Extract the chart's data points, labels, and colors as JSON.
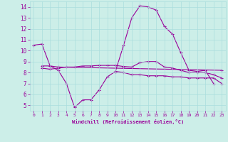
{
  "xlabel": "Windchill (Refroidissement éolien,°C)",
  "background_color": "#cceee8",
  "grid_color": "#aadddd",
  "line_color": "#990099",
  "xlim": [
    -0.5,
    23.5
  ],
  "ylim": [
    4.5,
    14.5
  ],
  "yticks": [
    5,
    6,
    7,
    8,
    9,
    10,
    11,
    12,
    13,
    14
  ],
  "xticks": [
    0,
    1,
    2,
    3,
    4,
    5,
    6,
    7,
    8,
    9,
    10,
    11,
    12,
    13,
    14,
    15,
    16,
    17,
    18,
    19,
    20,
    21,
    22,
    23
  ],
  "series": [
    {
      "x": [
        0,
        1,
        2,
        3,
        4,
        5,
        6,
        7,
        8,
        9,
        10,
        11,
        12,
        13,
        14,
        15,
        16,
        17,
        18,
        19,
        20,
        21,
        22,
        23
      ],
      "y": [
        10.5,
        10.6,
        8.6,
        8.2,
        7.0,
        4.8,
        5.5,
        5.5,
        6.4,
        7.6,
        8.1,
        10.5,
        13.0,
        14.1,
        14.0,
        13.7,
        12.2,
        11.5,
        9.8,
        8.2,
        8.1,
        8.2,
        7.0,
        null
      ]
    },
    {
      "x": [
        1,
        2,
        3,
        23
      ],
      "y": [
        8.6,
        8.6,
        8.5,
        8.2
      ]
    },
    {
      "x": [
        1,
        2,
        3,
        4,
        5,
        6,
        7,
        8,
        9,
        10,
        11,
        12,
        13,
        14,
        15,
        16,
        17,
        18,
        19,
        20,
        21,
        22,
        23
      ],
      "y": [
        8.4,
        8.3,
        8.4,
        8.5,
        8.5,
        8.6,
        8.6,
        8.65,
        8.65,
        8.65,
        8.55,
        8.5,
        8.9,
        9.0,
        9.0,
        8.5,
        8.4,
        8.2,
        8.0,
        8.0,
        8.0,
        7.8,
        7.5
      ]
    },
    {
      "x": [
        10,
        11,
        12,
        13,
        14,
        15,
        16,
        17,
        18,
        19,
        20,
        21,
        22,
        23
      ],
      "y": [
        8.1,
        8.0,
        7.8,
        7.8,
        7.7,
        7.7,
        7.7,
        7.6,
        7.6,
        7.5,
        7.5,
        7.5,
        7.5,
        7.0
      ]
    }
  ]
}
